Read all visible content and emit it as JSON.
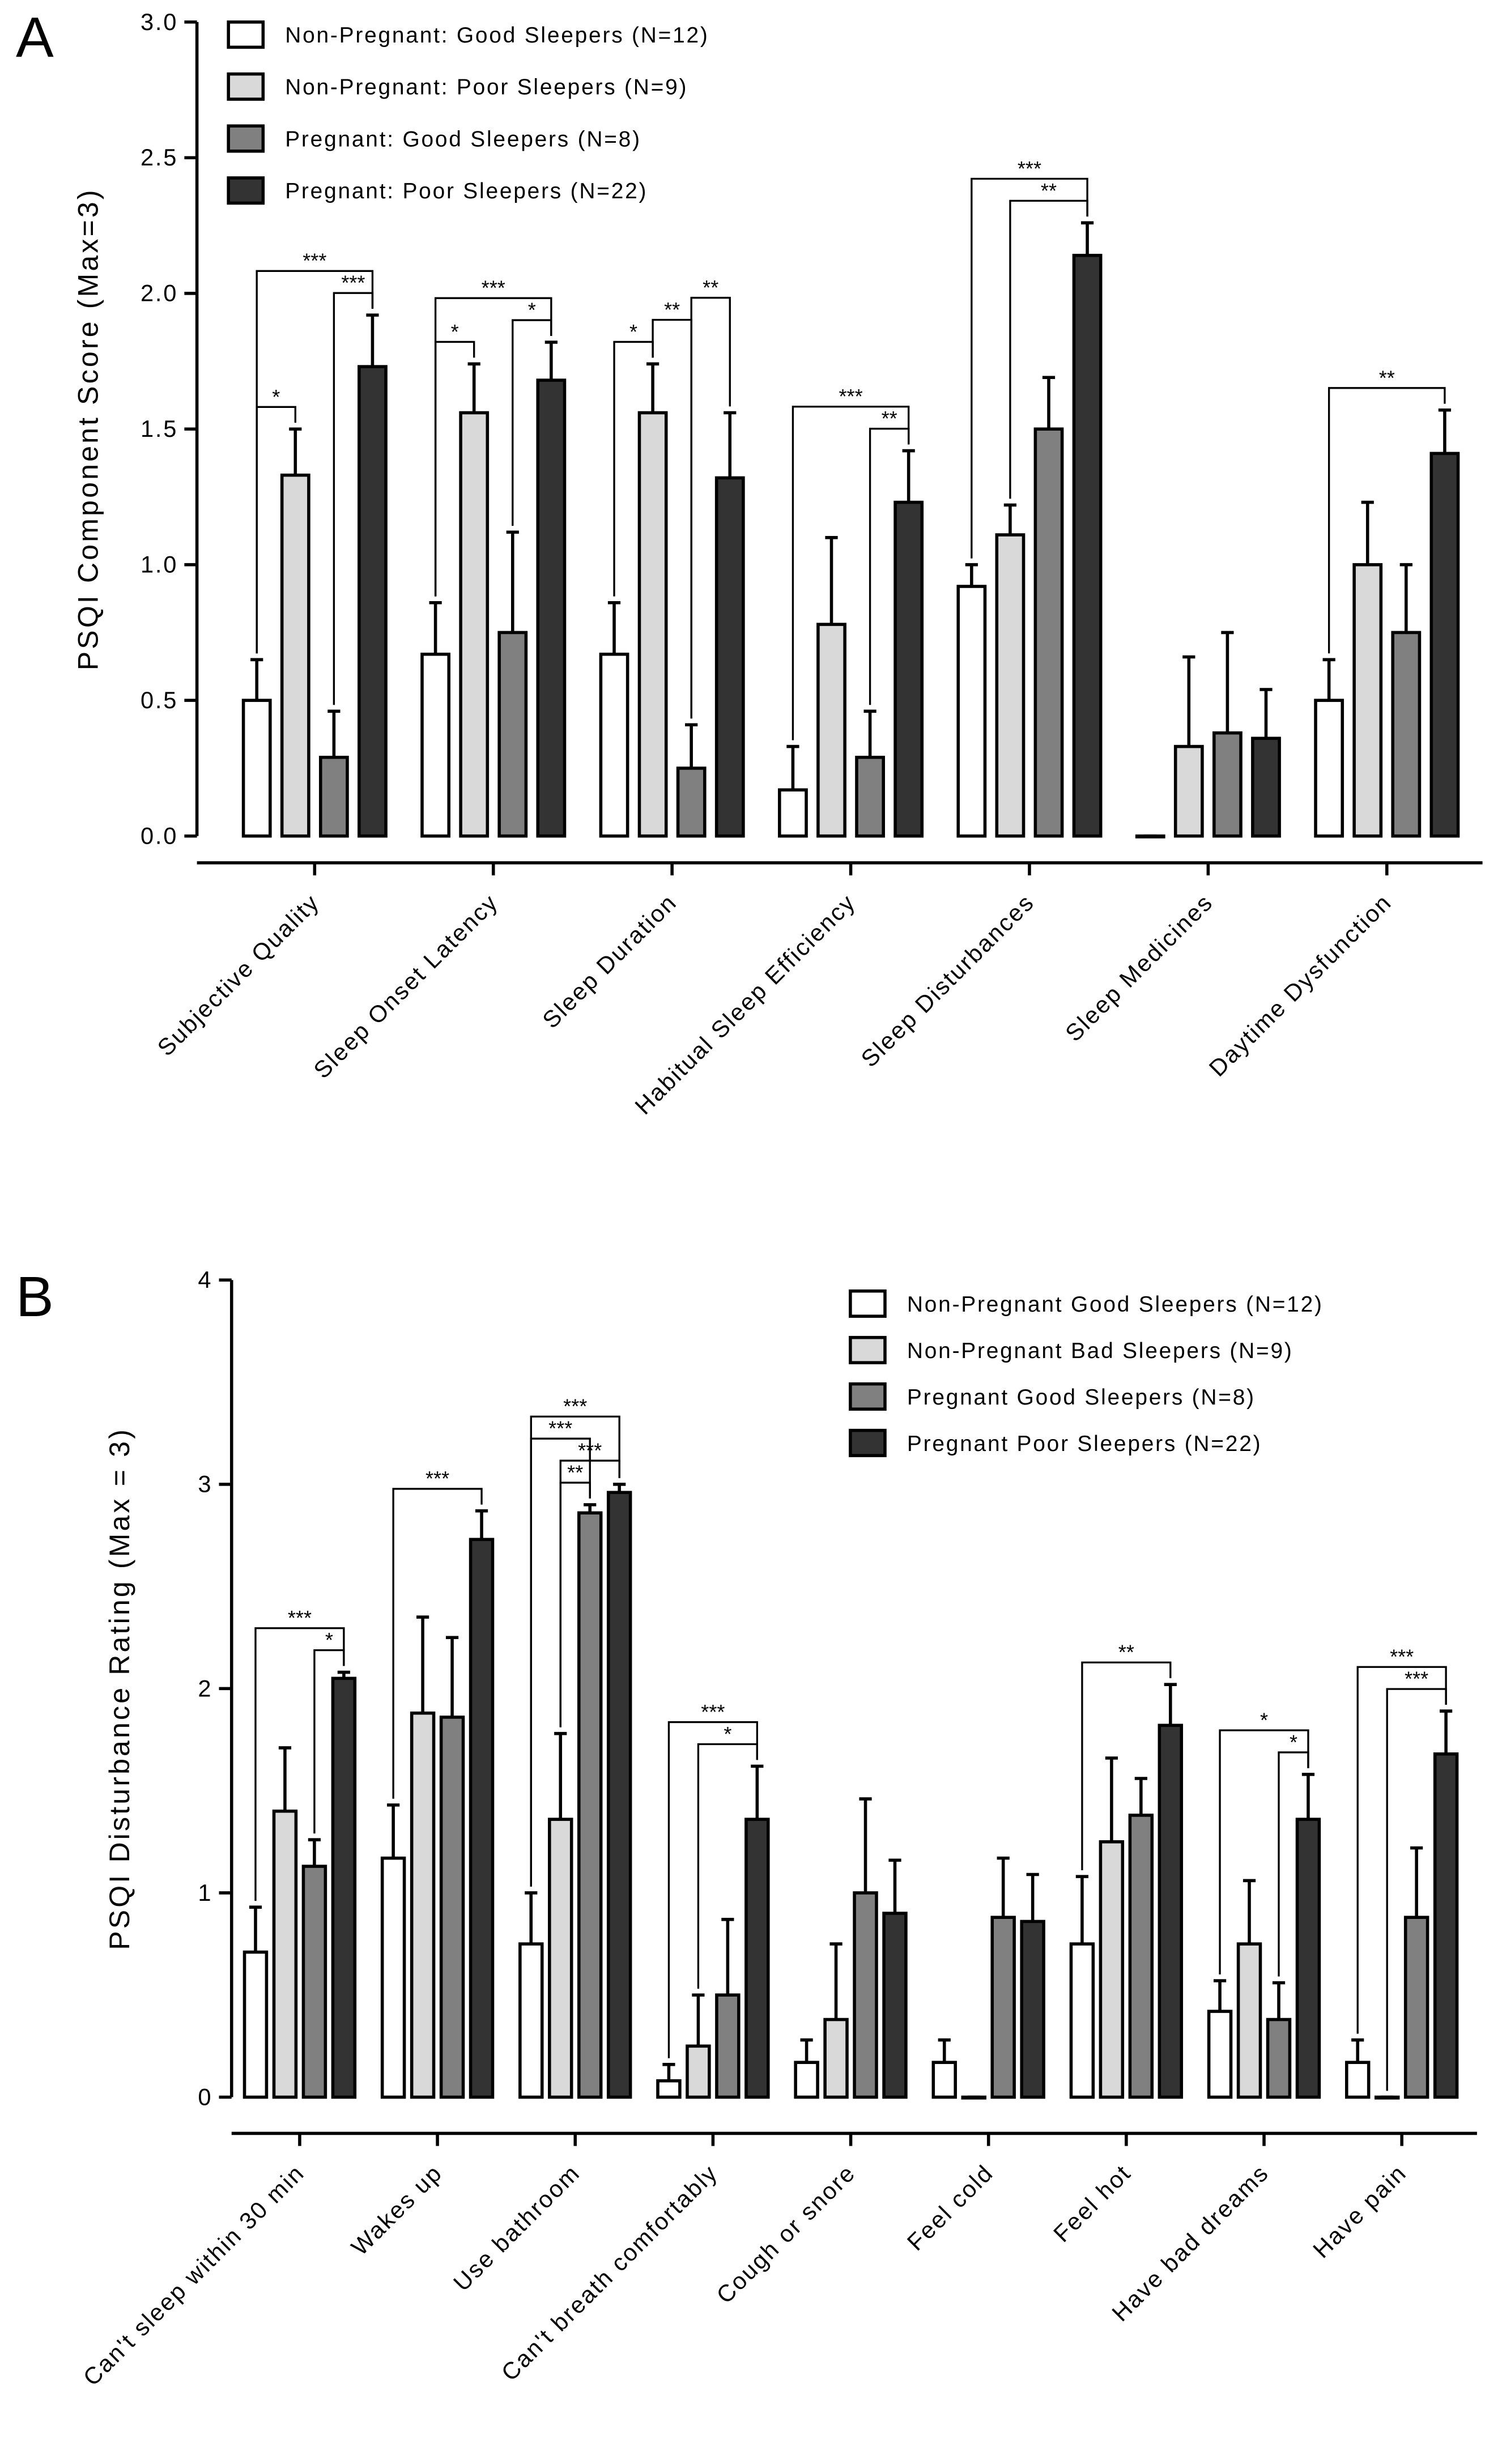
{
  "chart_data": [
    {
      "type": "bar",
      "panel": "A",
      "y_label": "PSQI Component Score (Max=3)",
      "categories": [
        "Subjective Quality",
        "Sleep Onset Latency",
        "Sleep Duration",
        "Habitual Sleep Efficiency",
        "Sleep Disturbances",
        "Sleep Medicines",
        "Daytime Dysfunction"
      ],
      "series": [
        {
          "name": "Non-Pregnant: Good Sleepers (N=12)",
          "color": "#ffffff",
          "values": [
            0.5,
            0.67,
            0.67,
            0.17,
            0.92,
            0,
            0.5
          ],
          "errors": [
            0.15,
            0.19,
            0.19,
            0.16,
            0.08,
            0,
            0.15
          ]
        },
        {
          "name": "Non-Pregnant: Poor Sleepers (N=9)",
          "color": "#d9d9d9",
          "values": [
            1.33,
            1.56,
            1.56,
            0.78,
            1.11,
            0.33,
            1.0
          ],
          "errors": [
            0.17,
            0.18,
            0.18,
            0.32,
            0.11,
            0.33,
            0.23
          ]
        },
        {
          "name": "Pregnant: Good Sleepers (N=8)",
          "color": "#808080",
          "values": [
            0.29,
            0.75,
            0.25,
            0.29,
            1.5,
            0.38,
            0.75
          ],
          "errors": [
            0.17,
            0.37,
            0.16,
            0.17,
            0.19,
            0.37,
            0.25
          ]
        },
        {
          "name": "Pregnant: Poor Sleepers (N=22)",
          "color": "#333333",
          "values": [
            1.73,
            1.68,
            1.32,
            1.23,
            2.14,
            0.36,
            1.41
          ],
          "errors": [
            0.19,
            0.14,
            0.24,
            0.19,
            0.12,
            0.18,
            0.16
          ]
        }
      ],
      "ylim": [
        0,
        3
      ],
      "yticks": [
        {
          "value": 0,
          "label": "0.0"
        },
        0.5,
        {
          "value": 1,
          "label": "1.0"
        },
        1.5,
        {
          "value": 2,
          "label": "2.0"
        },
        2.5,
        {
          "value": 3,
          "label": "3.0"
        }
      ],
      "legend": "upper left",
      "annotations": [
        {
          "label": "*",
          "category": 0,
          "from": 0,
          "to": 1
        },
        {
          "label": "***",
          "category": 0,
          "from": 2,
          "to": 3
        },
        {
          "label": "***",
          "category": 0,
          "from": 0,
          "to": 3
        },
        {
          "label": "*",
          "category": 1,
          "from": 0,
          "to": 1
        },
        {
          "label": "*",
          "category": 1,
          "from": 2,
          "to": 3
        },
        {
          "label": "***",
          "category": 1,
          "from": 0,
          "to": 3
        },
        {
          "label": "*",
          "category": 2,
          "from": 0,
          "to": 1
        },
        {
          "label": "**",
          "category": 2,
          "from": 1,
          "to": 2
        },
        {
          "label": "**",
          "category": 2,
          "from": 2,
          "to": 3
        },
        {
          "label": "**",
          "category": 3,
          "from": 2,
          "to": 3
        },
        {
          "label": "***",
          "category": 3,
          "from": 0,
          "to": 3
        },
        {
          "label": "**",
          "category": 4,
          "from": 1,
          "to": 3
        },
        {
          "label": "***",
          "category": 4,
          "from": 0,
          "to": 3
        },
        {
          "label": "**",
          "category": 6,
          "from": 0,
          "to": 3
        }
      ]
    },
    {
      "type": "bar",
      "panel": "B",
      "y_label": "PSQI Disturbance Rating (Max = 3)",
      "categories": [
        "Can't sleep within 30 min",
        "Wakes up",
        "Use bathroom",
        "Can't breath comfortably",
        "Cough or snore",
        "Feel cold",
        "Feel hot",
        "Have bad dreams",
        "Have pain"
      ],
      "series": [
        {
          "name": "Non-Pregnant Good Sleepers (N=12)",
          "color": "#ffffff",
          "values": [
            0.71,
            1.17,
            0.75,
            0.08,
            0.17,
            0.17,
            0.75,
            0.42,
            0.17
          ],
          "errors": [
            0.22,
            0.26,
            0.25,
            0.08,
            0.11,
            0.11,
            0.33,
            0.15,
            0.11
          ]
        },
        {
          "name": "Non-Pregnant Bad Sleepers (N=9)",
          "color": "#d9d9d9",
          "values": [
            1.4,
            1.88,
            1.36,
            0.25,
            0.38,
            0,
            1.25,
            0.75,
            0
          ],
          "errors": [
            0.31,
            0.47,
            0.42,
            0.25,
            0.37,
            0,
            0.41,
            0.31,
            0
          ]
        },
        {
          "name": "Pregnant Good Sleepers (N=8)",
          "color": "#808080",
          "values": [
            1.13,
            1.86,
            2.86,
            0.5,
            1.0,
            0.88,
            1.38,
            0.38,
            0.88
          ],
          "errors": [
            0.13,
            0.39,
            0.04,
            0.37,
            0.46,
            0.29,
            0.18,
            0.18,
            0.34
          ]
        },
        {
          "name": "Pregnant Poor Sleepers (N=22)",
          "color": "#333333",
          "values": [
            2.05,
            2.73,
            2.96,
            1.36,
            0.9,
            0.86,
            1.82,
            1.36,
            1.68
          ],
          "errors": [
            0.03,
            0.14,
            0.04,
            0.26,
            0.26,
            0.23,
            0.2,
            0.22,
            0.21
          ]
        }
      ],
      "ylim": [
        0,
        4
      ],
      "yticks": [
        0,
        1,
        2,
        3,
        4
      ],
      "legend": "upper right",
      "annotations": [
        {
          "label": "*",
          "category": 0,
          "from": 2,
          "to": 3
        },
        {
          "label": "***",
          "category": 0,
          "from": 0,
          "to": 3
        },
        {
          "label": "***",
          "category": 1,
          "from": 0,
          "to": 3
        },
        {
          "label": "**",
          "category": 2,
          "from": 1,
          "to": 2
        },
        {
          "label": "***",
          "category": 2,
          "from": 1,
          "to": 3
        },
        {
          "label": "***",
          "category": 2,
          "from": 0,
          "to": 2
        },
        {
          "label": "***",
          "category": 2,
          "from": 0,
          "to": 3
        },
        {
          "label": "*",
          "category": 3,
          "from": 1,
          "to": 3
        },
        {
          "label": "***",
          "category": 3,
          "from": 0,
          "to": 3
        },
        {
          "label": "**",
          "category": 6,
          "from": 0,
          "to": 3
        },
        {
          "label": "*",
          "category": 7,
          "from": 2,
          "to": 3
        },
        {
          "label": "*",
          "category": 7,
          "from": 0,
          "to": 3
        },
        {
          "label": "***",
          "category": 8,
          "from": 1,
          "to": 3
        },
        {
          "label": "***",
          "category": 8,
          "from": 0,
          "to": 3
        }
      ]
    }
  ]
}
